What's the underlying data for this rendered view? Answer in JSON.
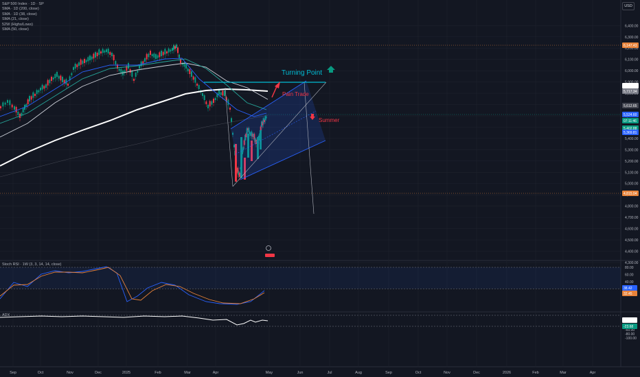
{
  "legend": {
    "title": "S&P 500 Index · 1D · SP",
    "items": [
      "SMA · 1D (200, close)",
      "SMA · 1D (38, close)",
      "SMA (21, close)",
      "52W (Highs/Lows)",
      "SMA (50, close)"
    ]
  },
  "currency_button": "USD",
  "price_axis": {
    "ticks": [
      "6,400.00",
      "6,300.00",
      "6,200.00",
      "6,100.00",
      "6,000.00",
      "5,900.00",
      "5,800.00",
      "5,700.00",
      "5,600.00",
      "5,500.00",
      "5,400.00",
      "5,300.00",
      "5,200.00",
      "5,100.00",
      "5,000.00",
      "4,900.00",
      "4,800.00",
      "4,700.00",
      "4,600.00",
      "4,500.00",
      "4,400.00",
      "4,300.00"
    ]
  },
  "price_badges": [
    {
      "value": "6,147.43",
      "color": "#e8833a"
    },
    {
      "value": "5,746.10",
      "color": "#ffffff"
    },
    {
      "value": "5,717.34",
      "color": "#787b86"
    },
    {
      "value": "5,612.65",
      "color": "#434651"
    },
    {
      "value": "5,524.60",
      "color": "#2962ff"
    },
    {
      "value": "07:11:46",
      "color": "#089981"
    },
    {
      "value": "5,402.88",
      "color": "#089981"
    },
    {
      "value": "5,369.81",
      "color": "#2962ff"
    },
    {
      "value": "4,815.04",
      "color": "#e8833a"
    }
  ],
  "annotations": {
    "turning_point": "Turning Point",
    "pain_trade": "Pain Trade",
    "summer": "Summer"
  },
  "stoch_pane": {
    "title": "Stoch RSI · 1W (3, 3, 14, 14, close)",
    "ticks": [
      "80.00",
      "60.00",
      "40.00",
      "20.00"
    ],
    "badges": [
      {
        "value": "38.42",
        "color": "#2962ff"
      },
      {
        "value": "32.45",
        "color": "#e8833a"
      }
    ]
  },
  "osc_pane": {
    "title": "ADX",
    "ticks": [
      "-20.00",
      "-40.00",
      "-60.00",
      "-80.00",
      "-100.00"
    ],
    "badges": [
      {
        "value": "-10.44",
        "color": "#ffffff"
      },
      {
        "value": "-23.68",
        "color": "#089981"
      }
    ]
  },
  "time_axis": {
    "labels": [
      "Sep",
      "Oct",
      "Nov",
      "Dec",
      "2025",
      "Feb",
      "Mar",
      "Apr",
      "May",
      "Jun",
      "Jul",
      "Aug",
      "Sep",
      "Oct",
      "Nov",
      "Dec",
      "2026",
      "Feb",
      "Mar",
      "Apr"
    ]
  }
}
